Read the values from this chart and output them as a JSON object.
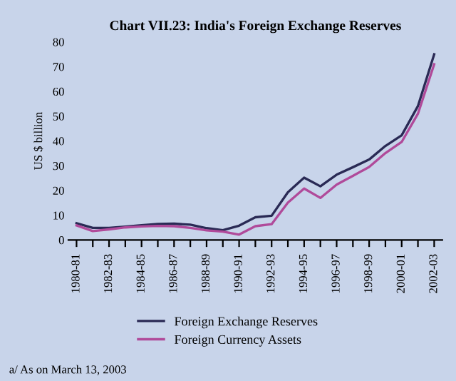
{
  "chart_data": {
    "type": "line",
    "title": "Chart VII.23: India's Foreign Exchange Reserves",
    "ylabel": "US $ billion",
    "categories": [
      "1980-81",
      null,
      "1982-83",
      null,
      "1984-85",
      null,
      "1986-87",
      null,
      "1988-89",
      null,
      "1990-91",
      null,
      "1992-93",
      null,
      "1994-95",
      null,
      "1996-97",
      null,
      "1998-99",
      null,
      "2000-01",
      null,
      "2002-03"
    ],
    "series": [
      {
        "name": "Foreign Exchange Reserves",
        "color": "#2a2a55",
        "values": [
          6.8,
          4.9,
          4.9,
          5.4,
          6.0,
          6.5,
          6.6,
          6.2,
          4.8,
          4.0,
          5.8,
          9.2,
          9.8,
          19.3,
          25.2,
          21.7,
          26.4,
          29.4,
          32.5,
          38.0,
          42.3,
          54.1,
          75.0
        ]
      },
      {
        "name": "Foreign Currency Assets",
        "color": "#b04a9a",
        "values": [
          5.9,
          3.6,
          4.3,
          5.1,
          5.5,
          5.7,
          5.6,
          4.9,
          3.9,
          3.4,
          2.2,
          5.6,
          6.4,
          15.1,
          20.8,
          17.0,
          22.4,
          25.9,
          29.5,
          35.1,
          39.6,
          51.0,
          71.0
        ]
      }
    ],
    "ylim": [
      0,
      80
    ],
    "yticks": [
      0,
      10,
      20,
      30,
      40,
      50,
      60,
      70,
      80
    ],
    "grid": false,
    "legend": "bottom",
    "marker": "none",
    "line_style": "solid",
    "annotations": [
      "a/ As on March 13, 2003"
    ]
  }
}
